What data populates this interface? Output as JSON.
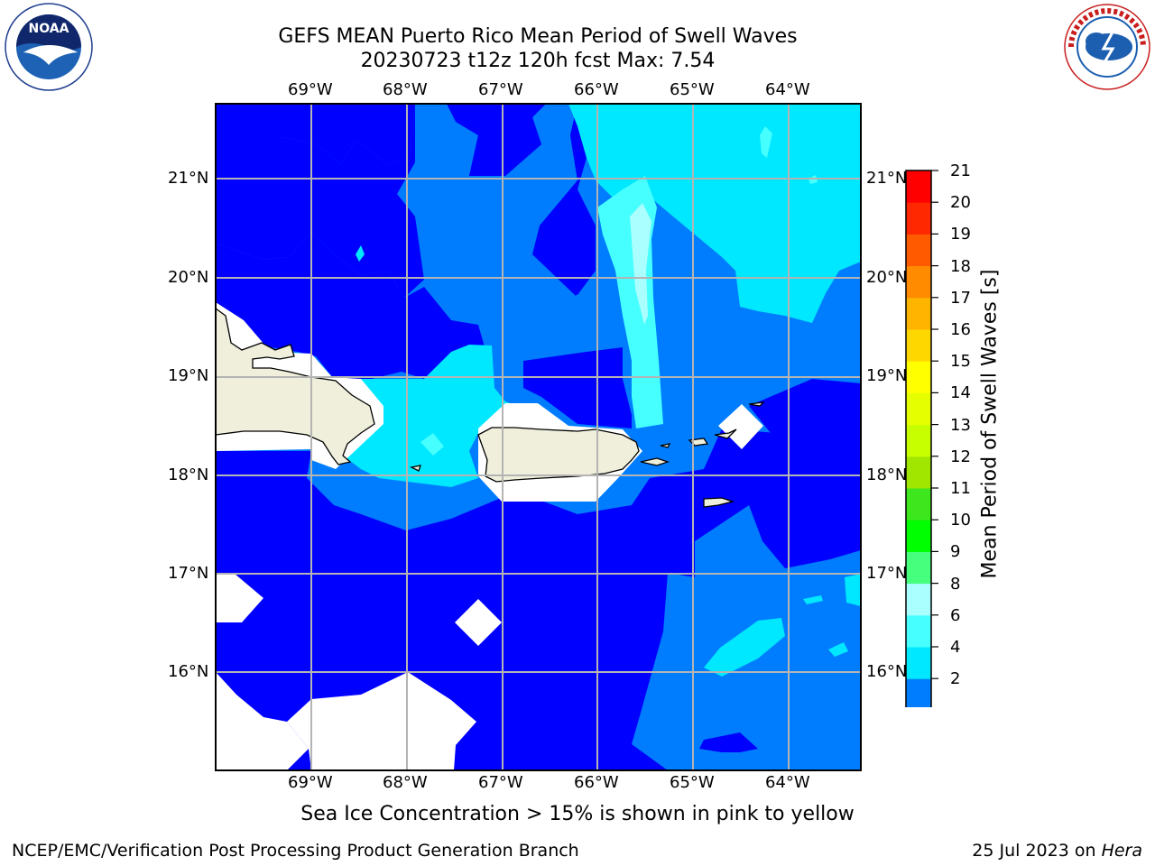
{
  "title": {
    "line1": "GEFS MEAN Puerto Rico Mean Period of Swell Waves",
    "line2": "20230723 t12z 120h fcst   Max: 7.54"
  },
  "logos": {
    "noaa_text": "NOAA",
    "noaa_ring_text": "NATIONAL OCEANIC AND ATMOSPHERIC ADMINISTRATION · U.S. DEPARTMENT OF COMMERCE",
    "nws_ring_text": "NATIONAL WEATHER SERVICE"
  },
  "map": {
    "lon_labels": [
      "69°W",
      "68°W",
      "67°W",
      "66°W",
      "65°W",
      "64°W"
    ],
    "lat_labels": [
      "21°N",
      "20°N",
      "19°N",
      "18°N",
      "17°N",
      "16°N"
    ],
    "land_color": "#efefdc",
    "gridline_color": "#b4b4b4"
  },
  "colorbar": {
    "title": "Mean Period of Swell Waves [s]",
    "levels": [
      "2",
      "4",
      "6",
      "7",
      "8",
      "9",
      "10",
      "11",
      "12",
      "13",
      "14",
      "15",
      "16",
      "17",
      "18",
      "19",
      "20",
      "21"
    ],
    "colors": [
      "#0000ff",
      "#007dff",
      "#00e8ff",
      "#46ffff",
      "#aaffff",
      "#46ff7d",
      "#00ff00",
      "#3ee61e",
      "#a0e600",
      "#c8ff00",
      "#e6ff00",
      "#ffff00",
      "#ffd700",
      "#ffb400",
      "#ff8c00",
      "#ff5a00",
      "#ff2800",
      "#ff0000"
    ],
    "tick_labels": [
      "2",
      "4",
      "6",
      "8",
      "9",
      "10",
      "11",
      "12",
      "13",
      "14",
      "15",
      "16",
      "17",
      "18",
      "19",
      "20",
      "21"
    ]
  },
  "sea_ice_note": "Sea Ice Concentration > 15% is shown in pink to yellow",
  "footer": {
    "branch": "NCEP/EMC/Verification Post Processing Product Generation Branch",
    "date_prefix": "25 Jul 2023 on ",
    "date_machine": "Hera"
  }
}
